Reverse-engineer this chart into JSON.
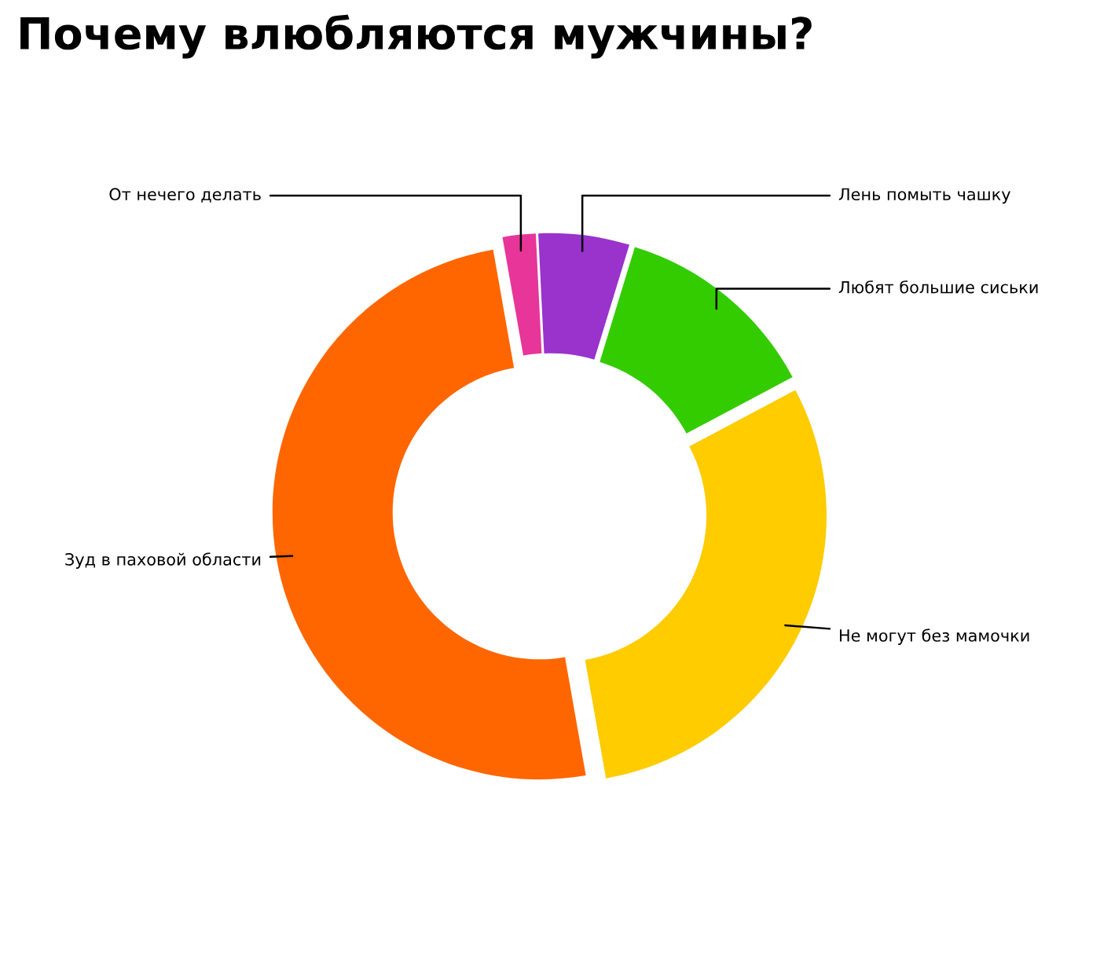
{
  "chart_data": {
    "type": "donut",
    "title": "Почему влюбляются мужчины?",
    "categories": [
      "От нечего делать",
      "Лень помыть чашку",
      "Любят большие сиськи",
      "Не могут без мамочки",
      "Зуд в паховой области"
    ],
    "values": [
      2,
      5.5,
      12.5,
      30,
      50
    ],
    "colors": [
      "#e8359a",
      "#9933cc",
      "#33cc00",
      "#ffcc00",
      "#ff6600"
    ],
    "legend": false
  }
}
